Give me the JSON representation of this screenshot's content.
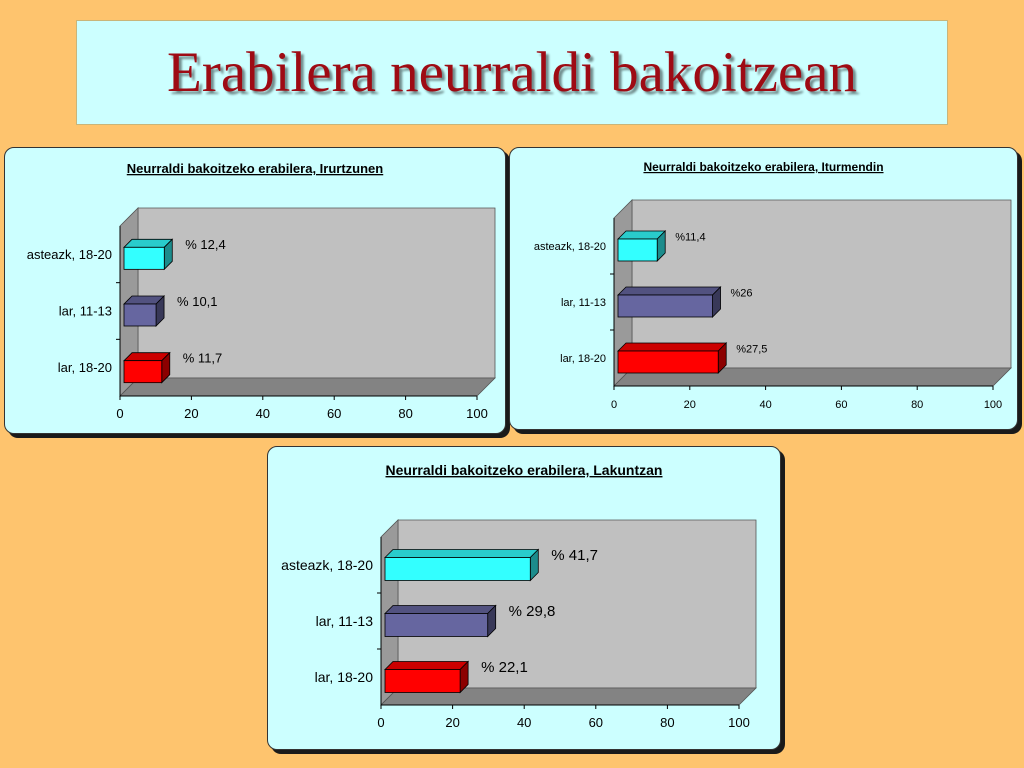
{
  "page_title": "Erabilera neurraldi bakoitzean",
  "colors": {
    "background": "#fec46e",
    "panel": "#ccffff",
    "title": "#9e0b14",
    "plot_wall": "#c0c0c0",
    "plot_floor": "#9a9a9a",
    "bar_asteazk": "#33ffff",
    "bar_lar_11_13": "#6666a0",
    "bar_lar_18_20": "#ff0000"
  },
  "chart_data": [
    {
      "type": "bar",
      "orientation": "horizontal",
      "title": "Neurraldi bakoitzeko erabilera, Irurtzunen",
      "categories": [
        "asteazk, 18-20",
        "lar, 11-13",
        "lar, 18-20"
      ],
      "values": [
        12.4,
        10.1,
        11.7
      ],
      "data_labels": [
        "% 12,4",
        "% 10,1",
        "% 11,7"
      ],
      "xlim": [
        0,
        100
      ],
      "x_ticks": [
        "0",
        "20",
        "40",
        "60",
        "80",
        "100"
      ],
      "grid": false,
      "legend": "none"
    },
    {
      "type": "bar",
      "orientation": "horizontal",
      "title": "Neurraldi bakoitzeko erabilera, Iturmendin",
      "categories": [
        "asteazk, 18-20",
        "lar, 11-13",
        "lar, 18-20"
      ],
      "values": [
        11.4,
        26,
        27.5
      ],
      "data_labels": [
        "%11,4",
        "%26",
        "%27,5"
      ],
      "xlim": [
        0,
        100
      ],
      "x_ticks": [
        "0",
        "20",
        "40",
        "60",
        "80",
        "100"
      ],
      "grid": false,
      "legend": "none"
    },
    {
      "type": "bar",
      "orientation": "horizontal",
      "title": "Neurraldi bakoitzeko erabilera, Lakuntzan",
      "categories": [
        "asteazk, 18-20",
        "lar, 11-13",
        "lar, 18-20"
      ],
      "values": [
        41.7,
        29.8,
        22.1
      ],
      "data_labels": [
        "% 41,7",
        "% 29,8",
        "% 22,1"
      ],
      "xlim": [
        0,
        100
      ],
      "x_ticks": [
        "0",
        "20",
        "40",
        "60",
        "80",
        "100"
      ],
      "grid": false,
      "legend": "none"
    }
  ]
}
